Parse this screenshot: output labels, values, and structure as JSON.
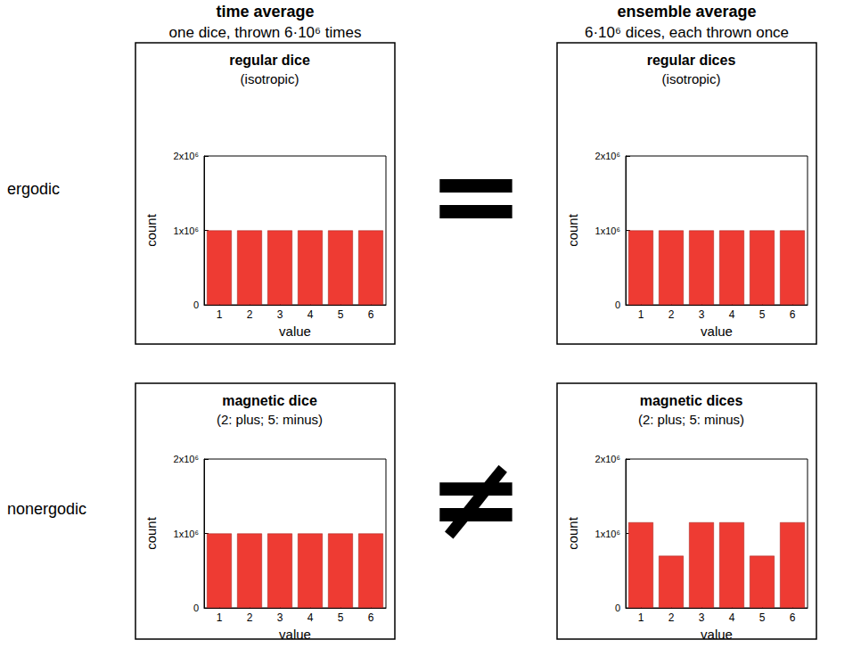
{
  "headers": [
    {
      "title": "time average",
      "subtitle": "one dice, thrown 6·10⁶ times"
    },
    {
      "title": "ensemble average",
      "subtitle": "6·10⁶ dices, each thrown once"
    }
  ],
  "rows": [
    {
      "label": "ergodic",
      "relation": "="
    },
    {
      "label": "nonergodic",
      "relation": "≠"
    }
  ],
  "chart_data": [
    {
      "type": "bar",
      "title": "regular dice",
      "subtitle": "(isotropic)",
      "categories": [
        "1",
        "2",
        "3",
        "4",
        "5",
        "6"
      ],
      "values": [
        1000000,
        1000000,
        1000000,
        1000000,
        1000000,
        1000000
      ],
      "color": "#ee3b33",
      "xlabel": "value",
      "ylabel": "count",
      "ylim": [
        0,
        2000000
      ],
      "yticks": [
        0,
        {
          "value": 1000000,
          "label": "1x10⁶"
        },
        {
          "value": 2000000,
          "label": "2x10⁶"
        }
      ],
      "grid": false
    },
    {
      "type": "bar",
      "title": "regular dices",
      "subtitle": "(isotropic)",
      "categories": [
        "1",
        "2",
        "3",
        "4",
        "5",
        "6"
      ],
      "values": [
        1000000,
        1000000,
        1000000,
        1000000,
        1000000,
        1000000
      ],
      "color": "#ee3b33",
      "xlabel": "value",
      "ylabel": "count",
      "ylim": [
        0,
        2000000
      ],
      "yticks": [
        0,
        {
          "value": 1000000,
          "label": "1x10⁶"
        },
        {
          "value": 2000000,
          "label": "2x10⁶"
        }
      ],
      "grid": false
    },
    {
      "type": "bar",
      "title": "magnetic dice",
      "subtitle": "(2: plus; 5: minus)",
      "categories": [
        "1",
        "2",
        "3",
        "4",
        "5",
        "6"
      ],
      "values": [
        1000000,
        1000000,
        1000000,
        1000000,
        1000000,
        1000000
      ],
      "color": "#ee3b33",
      "xlabel": "value",
      "ylabel": "count",
      "ylim": [
        0,
        2000000
      ],
      "yticks": [
        0,
        {
          "value": 1000000,
          "label": "1x10⁶"
        },
        {
          "value": 2000000,
          "label": "2x10⁶"
        }
      ],
      "grid": false
    },
    {
      "type": "bar",
      "title": "magnetic dices",
      "subtitle": "(2: plus; 5: minus)",
      "categories": [
        "1",
        "2",
        "3",
        "4",
        "5",
        "6"
      ],
      "values": [
        1150000,
        700000,
        1150000,
        1150000,
        700000,
        1150000
      ],
      "color": "#ee3b33",
      "xlabel": "value",
      "ylabel": "count",
      "ylim": [
        0,
        2000000
      ],
      "yticks": [
        0,
        {
          "value": 1000000,
          "label": "1x10⁶"
        },
        {
          "value": 2000000,
          "label": "2x10⁶"
        }
      ],
      "grid": false
    }
  ]
}
